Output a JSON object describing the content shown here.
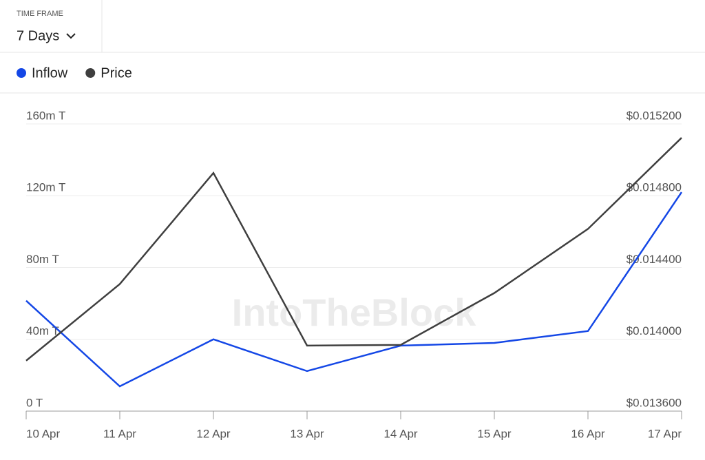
{
  "header": {
    "timeframe_label": "TIME FRAME",
    "timeframe_value": "7 Days"
  },
  "chart_data": {
    "type": "line",
    "watermark": "IntoTheBlock",
    "categories": [
      "10 Apr",
      "11 Apr",
      "12 Apr",
      "13 Apr",
      "14 Apr",
      "15 Apr",
      "16 Apr",
      "17 Apr"
    ],
    "series": [
      {
        "name": "Inflow",
        "color": "#1447e6",
        "values": [
          61.5,
          13.8,
          40,
          22.3,
          36.5,
          38,
          44.6,
          122
        ]
      },
      {
        "name": "Price",
        "color": "#3f3f3f",
        "axis": "y2",
        "values": [
          0.013881,
          0.014308,
          0.014927,
          0.013965,
          0.013969,
          0.014258,
          0.014615,
          0.015123
        ]
      }
    ],
    "ylim": [
      0,
      160
    ],
    "yticks": [
      {
        "value": 0,
        "label": "0 T"
      },
      {
        "value": 40,
        "label": "40m T"
      },
      {
        "value": 80,
        "label": "80m T"
      },
      {
        "value": 120,
        "label": "120m T"
      },
      {
        "value": 160,
        "label": "160m T"
      }
    ],
    "y2lim": [
      0.0136,
      0.0152
    ],
    "y2ticks": [
      {
        "value": 0.0136,
        "label": "$0.013600"
      },
      {
        "value": 0.014,
        "label": "$0.014000"
      },
      {
        "value": 0.0144,
        "label": "$0.014400"
      },
      {
        "value": 0.0148,
        "label": "$0.014800"
      },
      {
        "value": 0.0152,
        "label": "$0.015200"
      }
    ],
    "grid": true
  }
}
